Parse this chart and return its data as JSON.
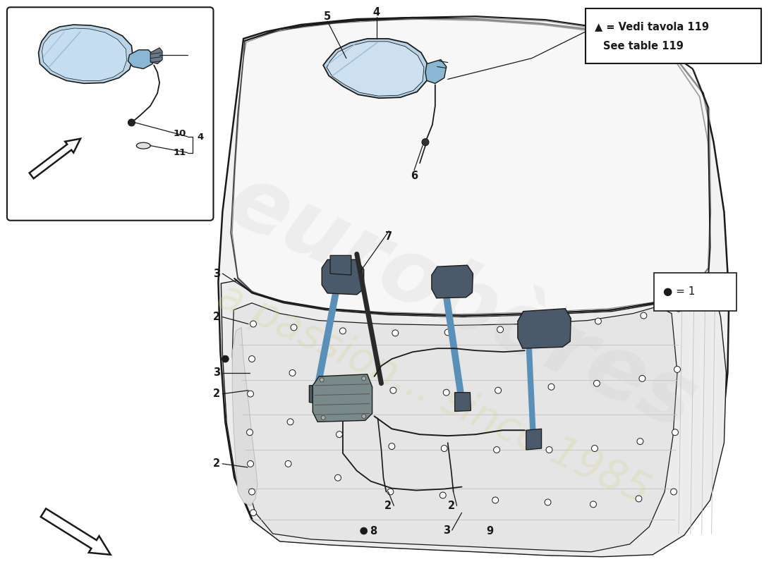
{
  "bg_color": "#ffffff",
  "lc": "#1a1a1a",
  "blue_light": "#b8d4e8",
  "blue_mid": "#8ab8d4",
  "blue_dark": "#5a90b8",
  "gray_door": "#f0f0f0",
  "gray_inner": "#e8e8e8",
  "comp_dark": "#4a5a6a",
  "comp_mid": "#6a7a8a",
  "legend_text1": "▲ = Vedi tavola 119",
  "legend_text2": "See table 119",
  "bullet_text": "● = 1"
}
